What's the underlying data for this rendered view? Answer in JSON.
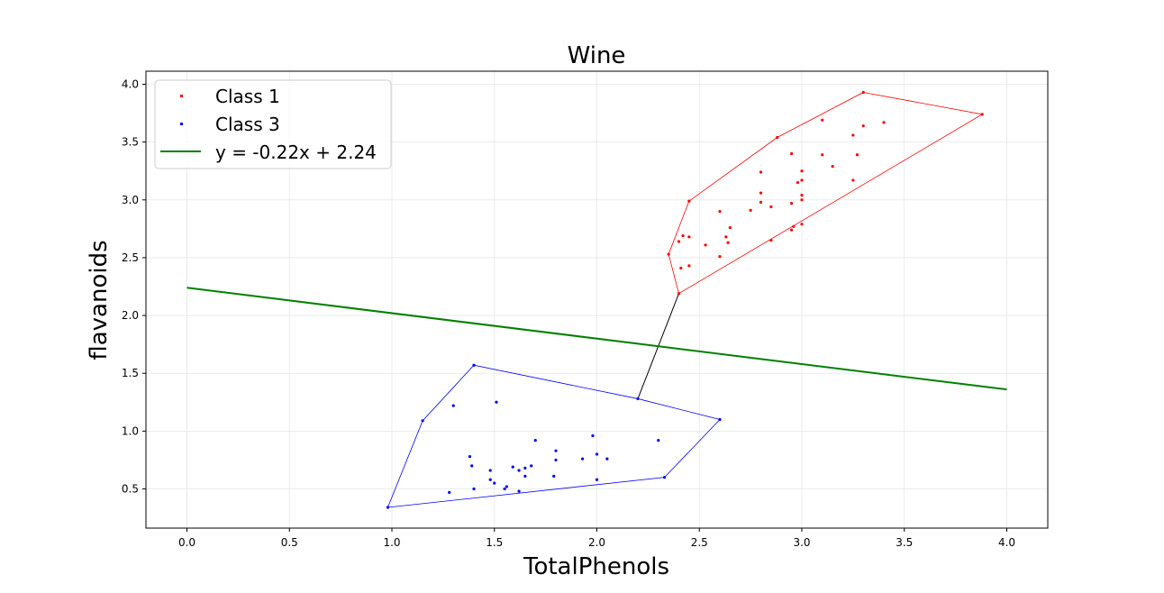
{
  "chart_data": {
    "type": "scatter",
    "title": "Wine",
    "xlabel": "TotalPhenols",
    "ylabel": "flavanoids",
    "xlim": [
      -0.2,
      4.2
    ],
    "ylim": [
      0.25,
      4.1
    ],
    "xticks": [
      0.0,
      0.5,
      1.0,
      1.5,
      2.0,
      2.5,
      3.0,
      3.5,
      4.0
    ],
    "xtick_labels": [
      "0.0",
      "0.5",
      "1.0",
      "1.5",
      "2.0",
      "2.5",
      "3.0",
      "3.5",
      "4.0"
    ],
    "yticks": [
      0.5,
      1.0,
      1.5,
      2.0,
      2.5,
      3.0,
      3.5,
      4.0
    ],
    "ytick_labels": [
      "0.5",
      "1.0",
      "1.5",
      "2.0",
      "2.5",
      "3.0",
      "3.5",
      "4.0"
    ],
    "grid": true,
    "legend_position": "top-left",
    "series": [
      {
        "name": "Class 1",
        "color": "#ff0000",
        "points": [
          [
            3.3,
            3.93
          ],
          [
            3.88,
            3.74
          ],
          [
            2.88,
            3.54
          ],
          [
            3.1,
            3.69
          ],
          [
            3.3,
            3.64
          ],
          [
            3.4,
            3.67
          ],
          [
            3.25,
            3.56
          ],
          [
            2.95,
            3.4
          ],
          [
            3.1,
            3.39
          ],
          [
            3.27,
            3.39
          ],
          [
            3.15,
            3.29
          ],
          [
            3.0,
            3.25
          ],
          [
            2.8,
            3.24
          ],
          [
            3.0,
            3.17
          ],
          [
            2.98,
            3.15
          ],
          [
            3.25,
            3.17
          ],
          [
            2.8,
            3.06
          ],
          [
            3.0,
            3.04
          ],
          [
            3.0,
            3.0
          ],
          [
            2.8,
            2.98
          ],
          [
            2.95,
            2.97
          ],
          [
            2.45,
            2.99
          ],
          [
            2.85,
            2.94
          ],
          [
            2.75,
            2.91
          ],
          [
            2.6,
            2.9
          ],
          [
            3.0,
            2.79
          ],
          [
            2.96,
            2.77
          ],
          [
            2.65,
            2.76
          ],
          [
            2.95,
            2.74
          ],
          [
            2.42,
            2.69
          ],
          [
            2.45,
            2.68
          ],
          [
            2.63,
            2.68
          ],
          [
            2.85,
            2.65
          ],
          [
            2.4,
            2.64
          ],
          [
            2.64,
            2.63
          ],
          [
            2.53,
            2.61
          ],
          [
            2.35,
            2.53
          ],
          [
            2.6,
            2.51
          ],
          [
            2.45,
            2.43
          ],
          [
            2.41,
            2.41
          ],
          [
            2.4,
            2.19
          ]
        ],
        "hull": [
          [
            3.3,
            3.93
          ],
          [
            3.88,
            3.74
          ],
          [
            2.4,
            2.19
          ],
          [
            2.35,
            2.53
          ],
          [
            2.45,
            2.99
          ],
          [
            2.88,
            3.54
          ]
        ]
      },
      {
        "name": "Class 3",
        "color": "#0000ff",
        "points": [
          [
            0.98,
            0.34
          ],
          [
            1.15,
            1.09
          ],
          [
            1.4,
            1.57
          ],
          [
            2.2,
            1.28
          ],
          [
            2.6,
            1.1
          ],
          [
            2.33,
            0.6
          ],
          [
            1.3,
            1.22
          ],
          [
            1.51,
            1.25
          ],
          [
            1.98,
            0.96
          ],
          [
            1.7,
            0.92
          ],
          [
            2.3,
            0.92
          ],
          [
            1.8,
            0.83
          ],
          [
            2.0,
            0.8
          ],
          [
            1.38,
            0.78
          ],
          [
            1.8,
            0.75
          ],
          [
            1.93,
            0.76
          ],
          [
            2.05,
            0.76
          ],
          [
            1.39,
            0.7
          ],
          [
            1.68,
            0.7
          ],
          [
            1.59,
            0.69
          ],
          [
            1.65,
            0.68
          ],
          [
            1.48,
            0.66
          ],
          [
            1.62,
            0.66
          ],
          [
            1.79,
            0.61
          ],
          [
            1.65,
            0.61
          ],
          [
            1.48,
            0.58
          ],
          [
            2.0,
            0.58
          ],
          [
            1.5,
            0.55
          ],
          [
            1.56,
            0.52
          ],
          [
            1.55,
            0.5
          ],
          [
            1.4,
            0.5
          ],
          [
            1.62,
            0.48
          ],
          [
            1.28,
            0.47
          ]
        ],
        "hull": [
          [
            0.98,
            0.34
          ],
          [
            2.33,
            0.6
          ],
          [
            2.6,
            1.1
          ],
          [
            2.2,
            1.28
          ],
          [
            1.4,
            1.57
          ],
          [
            1.15,
            1.09
          ]
        ]
      }
    ],
    "connector": {
      "color": "#000000",
      "from": [
        2.2,
        1.28
      ],
      "to": [
        2.4,
        2.19
      ]
    },
    "line": {
      "name": "y = -0.22x + 2.24",
      "color": "#008000",
      "slope": -0.22,
      "intercept": 2.24,
      "x_range": [
        0.0,
        4.0
      ]
    }
  }
}
